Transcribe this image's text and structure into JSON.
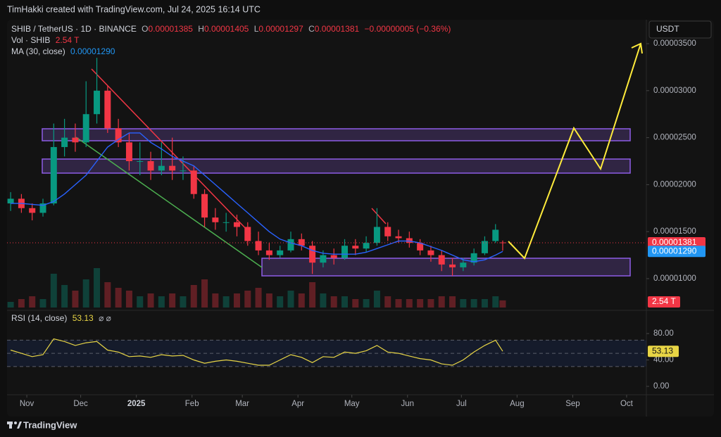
{
  "header": {
    "credit": "TimHakki created with TradingView.com, Jul 24, 2025 16:14 UTC",
    "currency": "USDT",
    "brand": "TradingView"
  },
  "legend": {
    "symbol": "SHIB / TetherUS · 1D · BINANCE",
    "ohlc": [
      {
        "label": "O",
        "value": "0.00001385"
      },
      {
        "label": "H",
        "value": "0.00001405"
      },
      {
        "label": "L",
        "value": "0.00001297"
      },
      {
        "label": "C",
        "value": "0.00001381"
      }
    ],
    "change": "−0.00000005 (−0.36%)",
    "volume_label": "Vol · SHIB",
    "volume_value": "2.54 T",
    "ma_label": "MA (30, close)",
    "ma_value": "0.00001290",
    "rsi_label": "RSI (14, close)",
    "rsi_value": "53.13",
    "rsi_icons": "⌀ ⌀"
  },
  "chart_data": {
    "type": "candlestick",
    "x": [
      -70,
      -64,
      -58,
      -52,
      -46,
      -40,
      -34,
      -28,
      -22,
      -16,
      -10,
      -4,
      2,
      8,
      14,
      20,
      26,
      32,
      38,
      44,
      50,
      56,
      62,
      68,
      74,
      80,
      86,
      92,
      98,
      104,
      110,
      116,
      122,
      128,
      134,
      140,
      146,
      152,
      158,
      164,
      170,
      176,
      182,
      188,
      194,
      200,
      204
    ],
    "xlim": [
      -72,
      284
    ],
    "xticks": [
      {
        "value": -61,
        "label": "Nov"
      },
      {
        "value": -31,
        "label": "Dec"
      },
      {
        "value": 0,
        "label": "2025"
      },
      {
        "value": 31,
        "label": "Feb"
      },
      {
        "value": 59,
        "label": "Mar"
      },
      {
        "value": 90,
        "label": "Apr"
      },
      {
        "value": 120,
        "label": "May"
      },
      {
        "value": 151,
        "label": "Jun"
      },
      {
        "value": 181,
        "label": "Jul"
      },
      {
        "value": 212,
        "label": "Aug"
      },
      {
        "value": 243,
        "label": "Sep"
      },
      {
        "value": 273,
        "label": "Oct"
      }
    ],
    "open": [
      1.8e-05,
      1.85e-05,
      1.75e-05,
      1.7e-05,
      1.8e-05,
      2.4e-05,
      2.5e-05,
      2.45e-05,
      2.75e-05,
      3e-05,
      2.6e-05,
      2.45e-05,
      2.25e-05,
      2.25e-05,
      2.15e-05,
      2.2e-05,
      2.15e-05,
      2.15e-05,
      1.9e-05,
      1.65e-05,
      1.6e-05,
      1.6e-05,
      1.55e-05,
      1.4e-05,
      1.3e-05,
      1.25e-05,
      1.3e-05,
      1.42e-05,
      1.35e-05,
      1.17e-05,
      1.25e-05,
      1.22e-05,
      1.35e-05,
      1.32e-05,
      1.38e-05,
      1.55e-05,
      1.45e-05,
      1.43e-05,
      1.38e-05,
      1.3e-05,
      1.25e-05,
      1.15e-05,
      1.12e-05,
      1.17e-05,
      1.27e-05,
      1.4e-05,
      1.385e-05
    ],
    "high": [
      1.92e-05,
      1.9e-05,
      1.8e-05,
      1.85e-05,
      2.65e-05,
      2.7e-05,
      2.65e-05,
      3.1e-05,
      3.35e-05,
      3.05e-05,
      2.7e-05,
      2.55e-05,
      2.45e-05,
      2.35e-05,
      2.45e-05,
      2.5e-05,
      2.3e-05,
      2.2e-05,
      1.95e-05,
      1.75e-05,
      1.7e-05,
      1.68e-05,
      1.6e-05,
      1.5e-05,
      1.38e-05,
      1.35e-05,
      1.5e-05,
      1.48e-05,
      1.4e-05,
      1.3e-05,
      1.32e-05,
      1.42e-05,
      1.42e-05,
      1.45e-05,
      1.75e-05,
      1.6e-05,
      1.52e-05,
      1.5e-05,
      1.42e-05,
      1.35e-05,
      1.3e-05,
      1.22e-05,
      1.22e-05,
      1.32e-05,
      1.45e-05,
      1.58e-05,
      1.405e-05
    ],
    "low": [
      1.72e-05,
      1.7e-05,
      1.62e-05,
      1.66e-05,
      1.78e-05,
      2.3e-05,
      2.35e-05,
      2.4e-05,
      2.65e-05,
      2.55e-05,
      2.4e-05,
      2.15e-05,
      2.1e-05,
      2.05e-05,
      2.1e-05,
      2.05e-05,
      2.05e-05,
      1.85e-05,
      1.55e-05,
      1.52e-05,
      1.5e-05,
      1.45e-05,
      1.35e-05,
      1.25e-05,
      1.2e-05,
      1.22e-05,
      1.28e-05,
      1.3e-05,
      1.05e-05,
      1.12e-05,
      1.15e-05,
      1.2e-05,
      1.25e-05,
      1.28e-05,
      1.35e-05,
      1.4e-05,
      1.38e-05,
      1.33e-05,
      1.25e-05,
      1.18e-05,
      1.08e-05,
      1.03e-05,
      1.08e-05,
      1.14e-05,
      1.25e-05,
      1.38e-05,
      1.297e-05
    ],
    "close": [
      1.85e-05,
      1.75e-05,
      1.7e-05,
      1.8e-05,
      2.4e-05,
      2.5e-05,
      2.45e-05,
      2.75e-05,
      3e-05,
      2.6e-05,
      2.45e-05,
      2.25e-05,
      2.25e-05,
      2.15e-05,
      2.2e-05,
      2.15e-05,
      2.15e-05,
      1.9e-05,
      1.65e-05,
      1.6e-05,
      1.6e-05,
      1.55e-05,
      1.4e-05,
      1.3e-05,
      1.25e-05,
      1.3e-05,
      1.42e-05,
      1.35e-05,
      1.17e-05,
      1.25e-05,
      1.22e-05,
      1.35e-05,
      1.32e-05,
      1.38e-05,
      1.55e-05,
      1.45e-05,
      1.43e-05,
      1.38e-05,
      1.3e-05,
      1.25e-05,
      1.15e-05,
      1.12e-05,
      1.17e-05,
      1.27e-05,
      1.4e-05,
      1.52e-05,
      1.381e-05
    ],
    "up_color": "#089981",
    "down_color": "#f23645",
    "ylim": [
      6.7e-06,
      3.74e-05
    ],
    "yticks": [
      {
        "value": 1e-05,
        "label": "0.00001000"
      },
      {
        "value": 1.5e-05,
        "label": "0.00001500"
      },
      {
        "value": 2e-05,
        "label": "0.00002000"
      },
      {
        "value": 2.5e-05,
        "label": "0.00002500"
      },
      {
        "value": 3e-05,
        "label": "0.00003000"
      },
      {
        "value": 3.5e-05,
        "label": "0.00003500"
      }
    ],
    "ma": {
      "color": "#2962ff",
      "values": [
        1.8e-05,
        1.8e-05,
        1.79e-05,
        1.78e-05,
        1.82e-05,
        1.9e-05,
        2e-05,
        2.1e-05,
        2.25e-05,
        2.4e-05,
        2.48e-05,
        2.55e-05,
        2.55e-05,
        2.45e-05,
        2.38e-05,
        2.3e-05,
        2.25e-05,
        2.2e-05,
        2.1e-05,
        2e-05,
        1.9e-05,
        1.8e-05,
        1.7e-05,
        1.6e-05,
        1.5e-05,
        1.42e-05,
        1.38e-05,
        1.35e-05,
        1.3e-05,
        1.27e-05,
        1.26e-05,
        1.26e-05,
        1.26e-05,
        1.28e-05,
        1.32e-05,
        1.36e-05,
        1.4e-05,
        1.4e-05,
        1.38e-05,
        1.34e-05,
        1.3e-05,
        1.25e-05,
        1.2e-05,
        1.18e-05,
        1.2e-05,
        1.25e-05,
        1.29e-05
      ]
    },
    "volume": {
      "values": [
        2,
        3,
        4,
        3,
        12,
        8,
        6,
        10,
        14,
        9,
        7,
        6,
        4,
        5,
        4,
        5,
        4,
        8,
        10,
        5,
        4,
        5,
        6,
        7,
        5,
        4,
        6,
        5,
        9,
        5,
        4,
        4,
        3,
        3,
        6,
        4,
        3,
        3,
        3,
        3,
        4,
        4,
        3,
        3,
        3,
        4,
        2.54
      ]
    },
    "rsi": {
      "color": "#e8d545",
      "values": [
        55,
        50,
        45,
        48,
        72,
        68,
        62,
        66,
        68,
        55,
        52,
        45,
        46,
        44,
        48,
        46,
        47,
        40,
        35,
        38,
        40,
        38,
        35,
        32,
        32,
        40,
        48,
        44,
        36,
        45,
        44,
        52,
        50,
        54,
        62,
        52,
        50,
        46,
        42,
        40,
        34,
        32,
        40,
        52,
        62,
        70,
        53.13
      ],
      "ylim": [
        -11.7,
        105.6
      ],
      "yticks": [
        {
          "value": 80,
          "label": "80.00"
        },
        {
          "value": 40,
          "label": "40.00"
        },
        {
          "value": 0,
          "label": "0.00"
        }
      ],
      "levels": [
        70,
        50,
        30
      ]
    }
  }
}
